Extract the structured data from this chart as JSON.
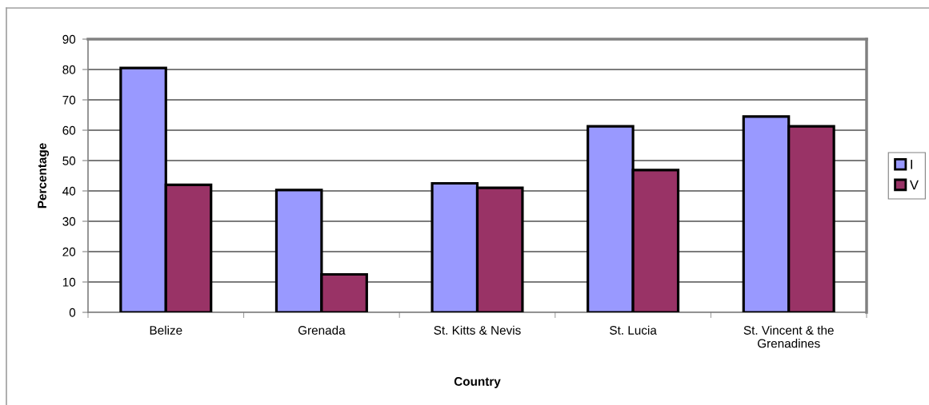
{
  "chart_data": {
    "type": "bar",
    "xlabel": "Country",
    "ylabel": "Percentage",
    "categories": [
      "Belize",
      "Grenada",
      "St. Kitts & Nevis",
      "St. Lucia",
      "St. Vincent & the\nGrenadines"
    ],
    "series": [
      {
        "name": "I",
        "color": "#9999ff",
        "values": [
          80.5,
          40.3,
          42.5,
          61.3,
          64.5
        ]
      },
      {
        "name": "V",
        "color": "#993366",
        "values": [
          42.0,
          12.5,
          41.0,
          46.9,
          61.3
        ]
      }
    ],
    "ylim": [
      0,
      90
    ],
    "yticks": [
      0,
      10,
      20,
      30,
      40,
      50,
      60,
      70,
      80,
      90
    ],
    "grid": "y",
    "legend": "right"
  }
}
